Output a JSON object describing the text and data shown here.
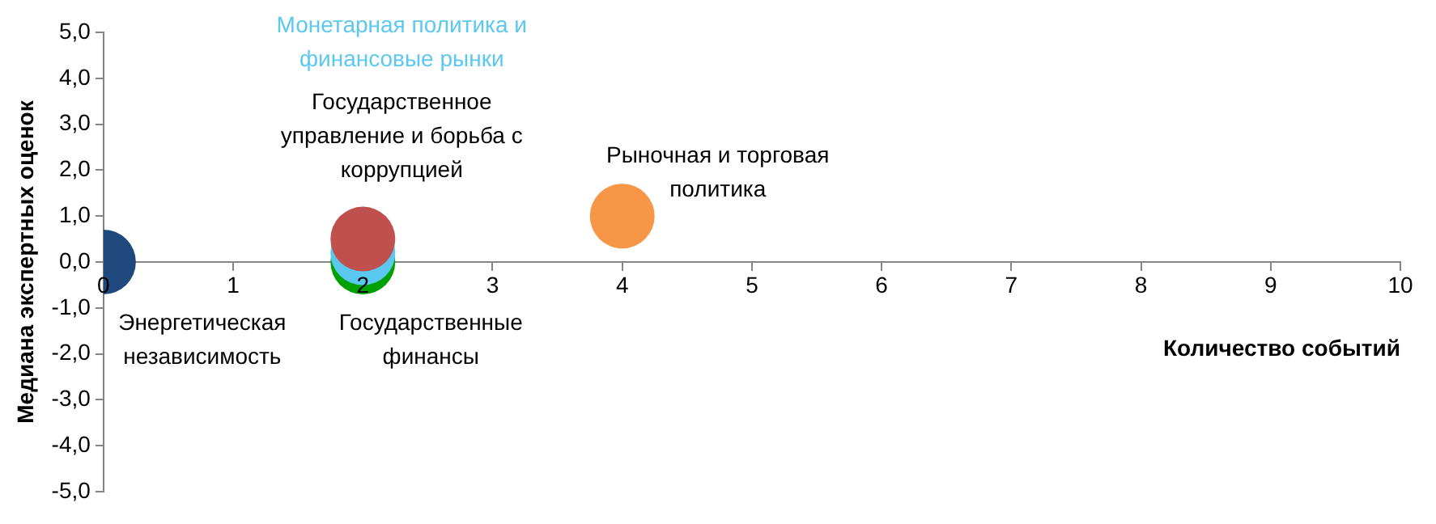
{
  "chart_data": {
    "type": "bubble",
    "xlabel": "Количество событий",
    "ylabel": "Медиана экспертных оценок",
    "xlim": [
      0,
      10
    ],
    "xticks": [
      0,
      1,
      2,
      3,
      4,
      5,
      6,
      7,
      8,
      9,
      10
    ],
    "ylim": [
      -5,
      5
    ],
    "yticks": [
      {
        "value": -5,
        "label": "-5,0"
      },
      {
        "value": -4,
        "label": "-4,0"
      },
      {
        "value": -3,
        "label": "-3,0"
      },
      {
        "value": -2,
        "label": "-2,0"
      },
      {
        "value": -1,
        "label": "-1,0"
      },
      {
        "value": 0,
        "label": "0,0"
      },
      {
        "value": 1,
        "label": "1,0"
      },
      {
        "value": 2,
        "label": "2,0"
      },
      {
        "value": 3,
        "label": "3,0"
      },
      {
        "value": 4,
        "label": "4,0"
      },
      {
        "value": 5,
        "label": "5,0"
      }
    ],
    "grid": false,
    "legend": false,
    "series": [
      {
        "name": "Энергетическая независимость",
        "color": "#1f497d",
        "x": [
          0
        ],
        "values": [
          0
        ],
        "sizes": [
          1
        ]
      },
      {
        "name": "Государственные финансы",
        "color": "#00a000",
        "x": [
          2
        ],
        "values": [
          0
        ],
        "sizes": [
          1
        ]
      },
      {
        "name": "Монетарная политика и финансовые рынки",
        "color": "#5bc8f0",
        "x": [
          2
        ],
        "values": [
          0.2
        ],
        "sizes": [
          1
        ]
      },
      {
        "name": "Государственное управление и борьба с коррупцией",
        "color": "#c0504d",
        "x": [
          2
        ],
        "values": [
          0.5
        ],
        "sizes": [
          1
        ]
      },
      {
        "name": "Рыночная и торговая политика",
        "color": "#f79646",
        "x": [
          4
        ],
        "values": [
          1
        ],
        "sizes": [
          1
        ]
      }
    ]
  }
}
